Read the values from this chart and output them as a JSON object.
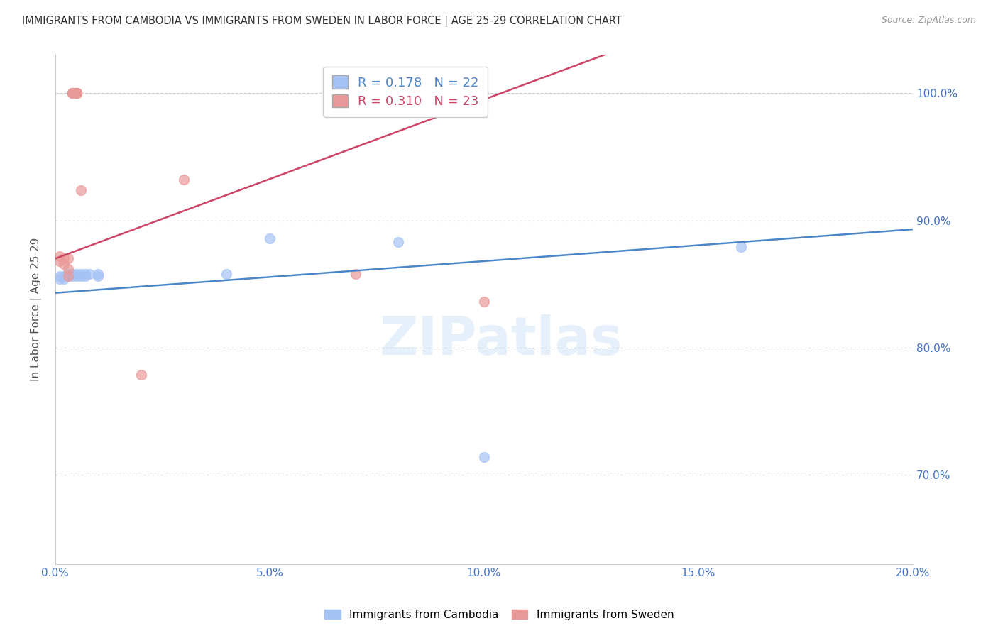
{
  "title": "IMMIGRANTS FROM CAMBODIA VS IMMIGRANTS FROM SWEDEN IN LABOR FORCE | AGE 25-29 CORRELATION CHART",
  "source": "Source: ZipAtlas.com",
  "ylabel": "In Labor Force | Age 25-29",
  "xlim": [
    0.0,
    0.2
  ],
  "ylim": [
    0.63,
    1.03
  ],
  "xticks": [
    0.0,
    0.05,
    0.1,
    0.15,
    0.2
  ],
  "yticks": [
    0.7,
    0.8,
    0.9,
    1.0
  ],
  "ytick_labels": [
    "70.0%",
    "80.0%",
    "90.0%",
    "100.0%"
  ],
  "xtick_labels": [
    "0.0%",
    "5.0%",
    "10.0%",
    "15.0%",
    "20.0%"
  ],
  "cambodia_color": "#a4c2f4",
  "sweden_color": "#ea9999",
  "cambodia_line_color": "#4a86c8",
  "sweden_line_color": "#cc4466",
  "cambodia_R": 0.178,
  "cambodia_N": 22,
  "sweden_R": 0.31,
  "sweden_N": 23,
  "watermark": "ZIPatlas",
  "background_color": "#ffffff",
  "grid_color": "#cccccc",
  "axis_color": "#4472c4",
  "title_color": "#333333",
  "cambodia_x": [
    0.001,
    0.001,
    0.002,
    0.002,
    0.003,
    0.003,
    0.004,
    0.004,
    0.005,
    0.005,
    0.006,
    0.006,
    0.007,
    0.007,
    0.008,
    0.01,
    0.01,
    0.04,
    0.05,
    0.08,
    0.1,
    0.16
  ],
  "cambodia_y": [
    0.856,
    0.854,
    0.856,
    0.854,
    0.858,
    0.856,
    0.858,
    0.856,
    0.858,
    0.856,
    0.858,
    0.856,
    0.856,
    0.858,
    0.858,
    0.858,
    0.856,
    0.858,
    0.886,
    0.883,
    0.714,
    0.879
  ],
  "sweden_x": [
    0.001,
    0.001,
    0.002,
    0.002,
    0.003,
    0.003,
    0.003,
    0.004,
    0.004,
    0.004,
    0.004,
    0.005,
    0.005,
    0.005,
    0.005,
    0.005,
    0.005,
    0.005,
    0.006,
    0.02,
    0.03,
    0.07,
    0.1
  ],
  "sweden_y": [
    0.872,
    0.868,
    0.87,
    0.866,
    0.856,
    0.87,
    0.862,
    1.0,
    1.0,
    1.0,
    1.0,
    1.0,
    1.0,
    1.0,
    1.0,
    1.0,
    1.0,
    1.0,
    0.924,
    0.779,
    0.932,
    0.858,
    0.836
  ],
  "marker_size": 100
}
